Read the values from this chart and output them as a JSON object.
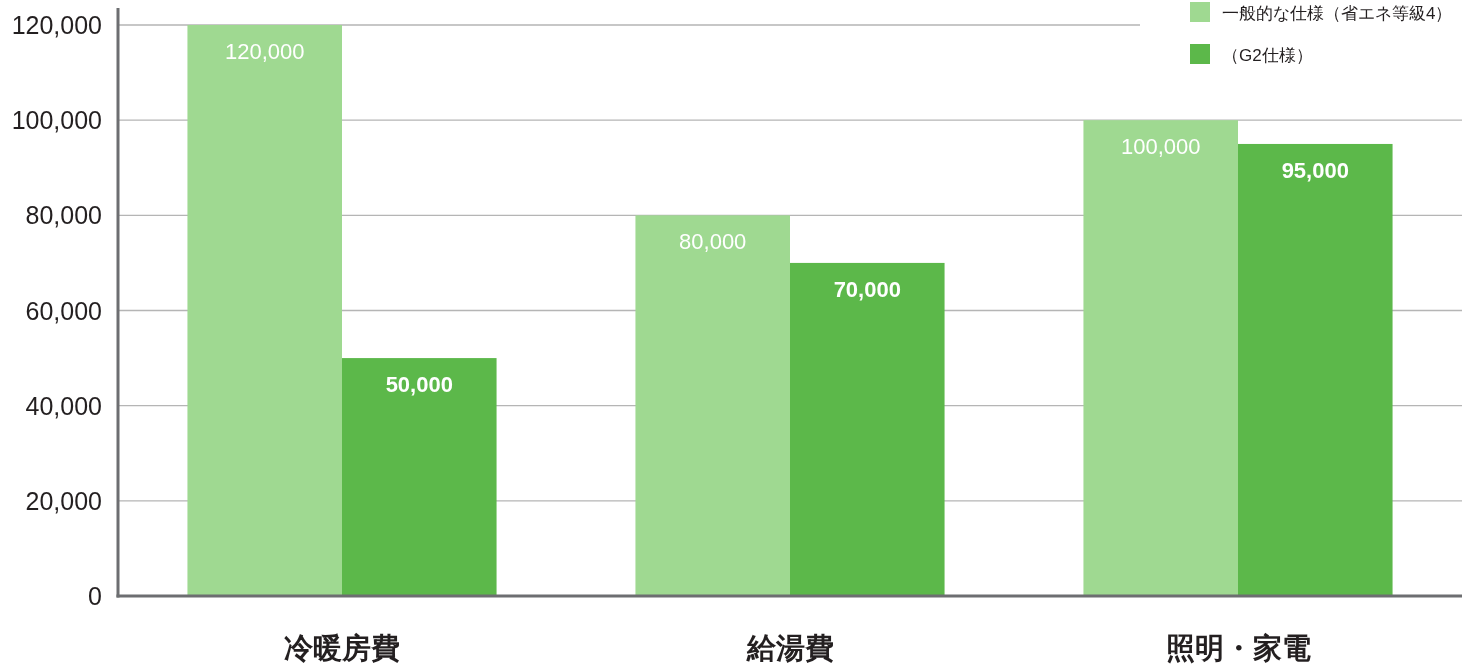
{
  "chart_data": {
    "type": "bar",
    "categories": [
      "冷暖房費",
      "給湯費",
      "照明・家電"
    ],
    "series": [
      {
        "name": "一般的な仕様（省エネ等級4）",
        "color": "#9fd991",
        "values": [
          120000,
          80000,
          100000
        ],
        "value_labels": [
          "120,000",
          "80,000",
          "100,000"
        ]
      },
      {
        "name": "（G2仕様）",
        "color": "#5cb84a",
        "values": [
          50000,
          70000,
          95000
        ],
        "value_labels": [
          "50,000",
          "70,000",
          "95,000"
        ]
      }
    ],
    "ylim": [
      0,
      120000
    ],
    "yticks": [
      {
        "value": 0,
        "label": "0"
      },
      {
        "value": 20000,
        "label": "20,000"
      },
      {
        "value": 40000,
        "label": "40,000"
      },
      {
        "value": 60000,
        "label": "60,000"
      },
      {
        "value": 80000,
        "label": "80,000"
      },
      {
        "value": 100000,
        "label": "100,000"
      },
      {
        "value": 120000,
        "label": "120,000"
      }
    ],
    "grid": "y",
    "legend": "top right"
  }
}
